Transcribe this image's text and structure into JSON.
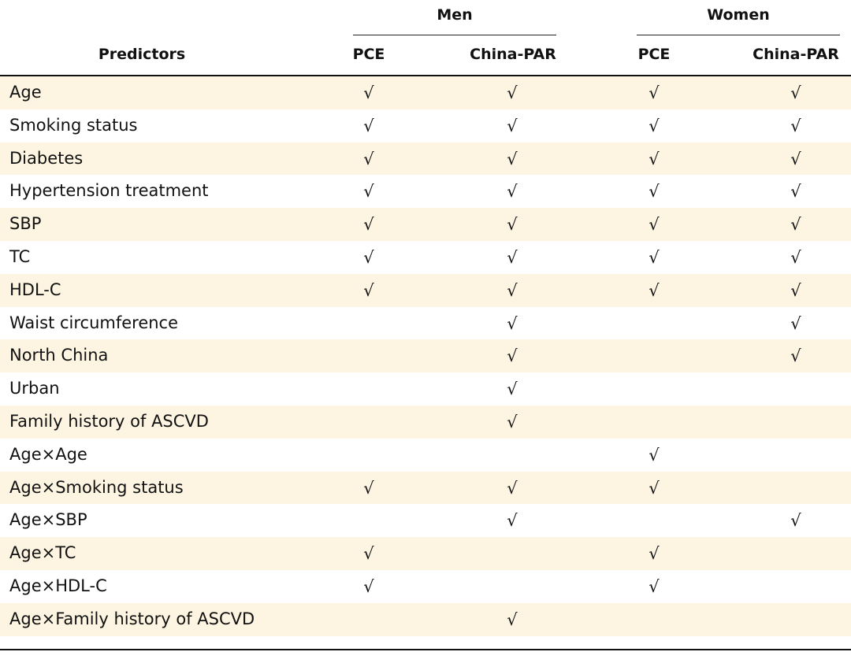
{
  "table": {
    "groups": {
      "men": "Men",
      "women": "Women"
    },
    "columns": {
      "predictors": "Predictors",
      "men_pce": "PCE",
      "men_china_par": "China-PAR",
      "women_pce": "PCE",
      "women_china_par": "China-PAR"
    },
    "check_symbol": "√",
    "row_shading_color": "#fdf5e1",
    "rows": [
      {
        "label": "Age",
        "men_pce": true,
        "men_china_par": true,
        "women_pce": true,
        "women_china_par": true
      },
      {
        "label": "Smoking status",
        "men_pce": true,
        "men_china_par": true,
        "women_pce": true,
        "women_china_par": true
      },
      {
        "label": "Diabetes",
        "men_pce": true,
        "men_china_par": true,
        "women_pce": true,
        "women_china_par": true
      },
      {
        "label": "Hypertension treatment",
        "men_pce": true,
        "men_china_par": true,
        "women_pce": true,
        "women_china_par": true
      },
      {
        "label": "SBP",
        "men_pce": true,
        "men_china_par": true,
        "women_pce": true,
        "women_china_par": true
      },
      {
        "label": "TC",
        "men_pce": true,
        "men_china_par": true,
        "women_pce": true,
        "women_china_par": true
      },
      {
        "label": "HDL-C",
        "men_pce": true,
        "men_china_par": true,
        "women_pce": true,
        "women_china_par": true
      },
      {
        "label": "Waist circumference",
        "men_pce": false,
        "men_china_par": true,
        "women_pce": false,
        "women_china_par": true
      },
      {
        "label": "North China",
        "men_pce": false,
        "men_china_par": true,
        "women_pce": false,
        "women_china_par": true
      },
      {
        "label": "Urban",
        "men_pce": false,
        "men_china_par": true,
        "women_pce": false,
        "women_china_par": false
      },
      {
        "label": "Family history of ASCVD",
        "men_pce": false,
        "men_china_par": true,
        "women_pce": false,
        "women_china_par": false
      },
      {
        "label": "Age×Age",
        "men_pce": false,
        "men_china_par": false,
        "women_pce": true,
        "women_china_par": false
      },
      {
        "label": "Age×Smoking status",
        "men_pce": true,
        "men_china_par": true,
        "women_pce": true,
        "women_china_par": false
      },
      {
        "label": "Age×SBP",
        "men_pce": false,
        "men_china_par": true,
        "women_pce": false,
        "women_china_par": true
      },
      {
        "label": "Age×TC",
        "men_pce": true,
        "men_china_par": false,
        "women_pce": true,
        "women_china_par": false
      },
      {
        "label": "Age×HDL-C",
        "men_pce": true,
        "men_china_par": false,
        "women_pce": true,
        "women_china_par": false
      },
      {
        "label": "Age×Family history of ASCVD",
        "men_pce": false,
        "men_china_par": true,
        "women_pce": false,
        "women_china_par": false
      }
    ]
  }
}
